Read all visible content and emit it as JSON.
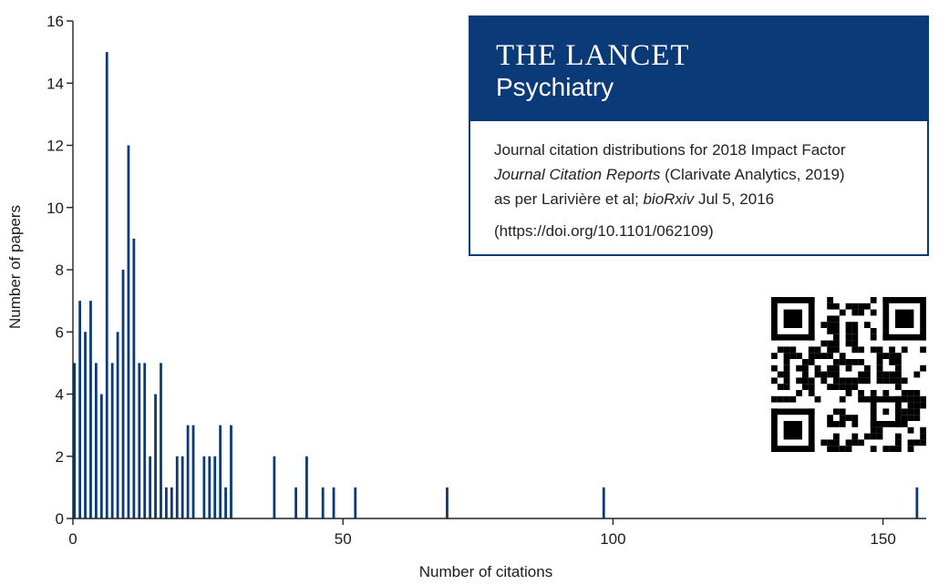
{
  "chart_data": {
    "type": "bar",
    "title": "",
    "xlabel": "Number of citations",
    "ylabel": "Number of papers",
    "xlim": [
      0,
      158
    ],
    "ylim": [
      0,
      16
    ],
    "xticks": [
      0,
      50,
      100,
      150
    ],
    "yticks": [
      0,
      2,
      4,
      6,
      8,
      10,
      12,
      14,
      16
    ],
    "grid": false,
    "bar_color": "#0b3a78",
    "x": [
      0,
      1,
      2,
      3,
      4,
      5,
      6,
      7,
      8,
      9,
      10,
      11,
      12,
      13,
      14,
      15,
      16,
      17,
      18,
      19,
      20,
      21,
      22,
      24,
      25,
      26,
      27,
      28,
      29,
      37,
      41,
      43,
      46,
      48,
      52,
      69,
      98,
      156
    ],
    "values": [
      5,
      7,
      6,
      7,
      5,
      4,
      15,
      5,
      6,
      8,
      12,
      9,
      5,
      5,
      2,
      4,
      5,
      1,
      1,
      2,
      2,
      3,
      3,
      2,
      2,
      2,
      3,
      1,
      3,
      2,
      1,
      2,
      1,
      1,
      1,
      1,
      1,
      1
    ]
  },
  "infobox": {
    "title": "THE LANCET",
    "subtitle": "Psychiatry",
    "line1": "Journal citation distributions for 2018 Impact Factor",
    "line2_italic": "Journal Citation Reports",
    "line2_rest": " (Clarivate Analytics, 2019)",
    "line3_prefix": "as per Larivière et al; ",
    "line3_italic": "bioRxiv",
    "line3_suffix": " Jul 5, 2016",
    "doi": "(https://doi.org/10.1101/062109)",
    "brand_color": "#0b3a78"
  },
  "qr_code": {
    "icon": "qr-code-icon"
  }
}
